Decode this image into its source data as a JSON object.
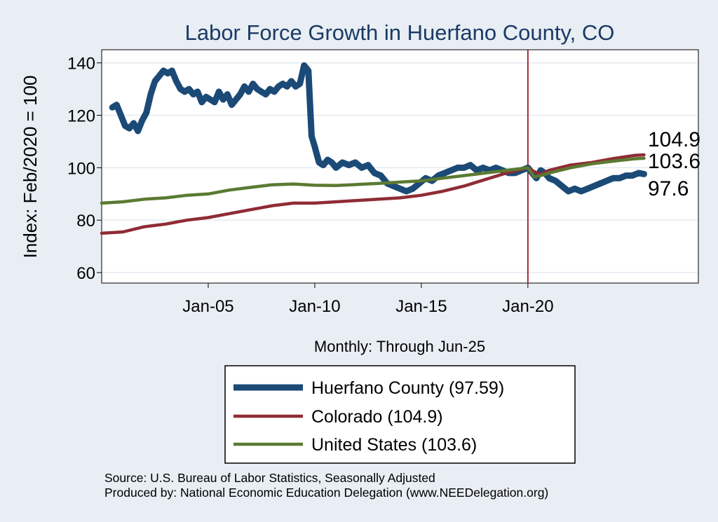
{
  "colors": {
    "background": "#e8eef3",
    "plot_bg": "#ffffff",
    "title": "#1a3a66",
    "grid": "#e2eaf0",
    "vline": "#a8263c"
  },
  "chart_data": {
    "type": "line",
    "title": "Labor Force Growth in Huerfano  County, CO",
    "xlabel": "Monthly: Through Jun-25",
    "ylabel": "Index: Feb/2020 = 100",
    "xlim": [
      2000.0,
      2028.0
    ],
    "ylim": [
      56,
      145
    ],
    "yticks": [
      60,
      80,
      100,
      120,
      140
    ],
    "xticks": [
      {
        "value": 2005.0,
        "label": "Jan-05"
      },
      {
        "value": 2010.0,
        "label": "Jan-10"
      },
      {
        "value": 2015.0,
        "label": "Jan-15"
      },
      {
        "value": 2020.0,
        "label": "Jan-20"
      }
    ],
    "vline_x": 2020.0,
    "end_labels": [
      {
        "text": "104.9",
        "value": 104.9
      },
      {
        "text": "103.6",
        "value": 103.6
      },
      {
        "text": "97.6",
        "value": 97.6
      }
    ],
    "series": [
      {
        "name": "Huerfano  County (97.59)",
        "color": "#1b4a77",
        "width": 9,
        "x": [
          2000.5,
          2000.7,
          2000.9,
          2001.1,
          2001.3,
          2001.5,
          2001.7,
          2001.9,
          2002.1,
          2002.3,
          2002.5,
          2002.7,
          2002.9,
          2003.1,
          2003.3,
          2003.5,
          2003.7,
          2003.9,
          2004.1,
          2004.3,
          2004.5,
          2004.7,
          2004.9,
          2005.1,
          2005.3,
          2005.5,
          2005.7,
          2005.9,
          2006.1,
          2006.3,
          2006.5,
          2006.7,
          2006.9,
          2007.1,
          2007.3,
          2007.5,
          2007.7,
          2007.9,
          2008.1,
          2008.3,
          2008.5,
          2008.7,
          2008.9,
          2009.1,
          2009.3,
          2009.5,
          2009.7,
          2009.85,
          2010.0,
          2010.2,
          2010.4,
          2010.6,
          2010.8,
          2011.0,
          2011.3,
          2011.6,
          2011.9,
          2012.2,
          2012.5,
          2012.8,
          2013.1,
          2013.4,
          2013.7,
          2014.0,
          2014.3,
          2014.6,
          2014.9,
          2015.2,
          2015.5,
          2015.8,
          2016.1,
          2016.4,
          2016.7,
          2017.0,
          2017.3,
          2017.6,
          2017.9,
          2018.2,
          2018.5,
          2018.8,
          2019.1,
          2019.4,
          2019.7,
          2020.0,
          2020.2,
          2020.4,
          2020.6,
          2020.8,
          2021.0,
          2021.3,
          2021.6,
          2021.9,
          2022.2,
          2022.5,
          2022.8,
          2023.1,
          2023.4,
          2023.7,
          2024.0,
          2024.3,
          2024.6,
          2024.9,
          2025.2,
          2025.45
        ],
        "y": [
          123,
          124,
          120,
          116,
          115,
          117,
          114,
          118,
          121,
          128,
          133,
          135,
          137,
          136,
          137,
          133,
          130,
          129,
          130,
          128,
          129,
          125,
          127,
          126,
          125,
          129,
          126,
          128,
          124,
          126,
          128,
          131,
          129,
          132,
          130,
          129,
          128,
          130,
          129,
          131,
          132,
          131,
          133,
          131,
          132,
          139,
          137,
          112,
          108,
          102,
          101,
          103,
          102,
          100,
          102,
          101,
          102,
          100,
          101,
          98,
          97,
          94,
          93,
          92,
          91,
          92,
          94,
          96,
          95,
          97,
          98,
          99,
          100,
          100,
          101,
          99,
          100,
          99,
          100,
          99,
          98,
          98,
          99,
          100,
          98,
          96,
          99,
          98,
          96,
          95,
          93,
          91,
          92,
          91,
          92,
          93,
          94,
          95,
          96,
          96,
          97,
          97,
          98,
          97.6
        ]
      },
      {
        "name": "Colorado (104.9)",
        "color": "#8f2c35",
        "width": 4.5,
        "x": [
          2000.0,
          2001.0,
          2002.0,
          2003.0,
          2004.0,
          2005.0,
          2006.0,
          2007.0,
          2008.0,
          2009.0,
          2010.0,
          2011.0,
          2012.0,
          2013.0,
          2014.0,
          2015.0,
          2016.0,
          2017.0,
          2018.0,
          2019.0,
          2020.0,
          2020.3,
          2020.6,
          2021.0,
          2022.0,
          2023.0,
          2024.0,
          2025.0,
          2025.45
        ],
        "y": [
          75,
          75.5,
          77.5,
          78.5,
          80,
          81,
          82.5,
          84,
          85.5,
          86.5,
          86.5,
          87,
          87.5,
          88,
          88.5,
          89.5,
          91,
          93,
          95.5,
          98,
          100,
          98.5,
          97.5,
          99,
          101,
          102,
          103.5,
          104.7,
          104.9
        ]
      },
      {
        "name": "United States (103.6)",
        "color": "#5b7a32",
        "width": 4.5,
        "x": [
          2000.0,
          2001.0,
          2002.0,
          2003.0,
          2004.0,
          2005.0,
          2006.0,
          2007.0,
          2008.0,
          2009.0,
          2010.0,
          2011.0,
          2012.0,
          2013.0,
          2014.0,
          2015.0,
          2016.0,
          2017.0,
          2018.0,
          2019.0,
          2020.0,
          2020.3,
          2020.6,
          2021.0,
          2022.0,
          2023.0,
          2024.0,
          2025.0,
          2025.45
        ],
        "y": [
          86.5,
          87,
          88,
          88.5,
          89.5,
          90,
          91.5,
          92.5,
          93.5,
          93.8,
          93.3,
          93.2,
          93.6,
          94,
          94.5,
          95,
          96,
          97,
          98,
          99,
          100,
          96.5,
          97,
          98,
          100,
          101.5,
          102.5,
          103.4,
          103.6
        ]
      }
    ]
  },
  "source_lines": [
    "Source: U.S. Bureau of Labor Statistics, Seasonally Adjusted",
    "Produced by: National Economic Education Delegation (www.NEEDelegation.org)"
  ]
}
